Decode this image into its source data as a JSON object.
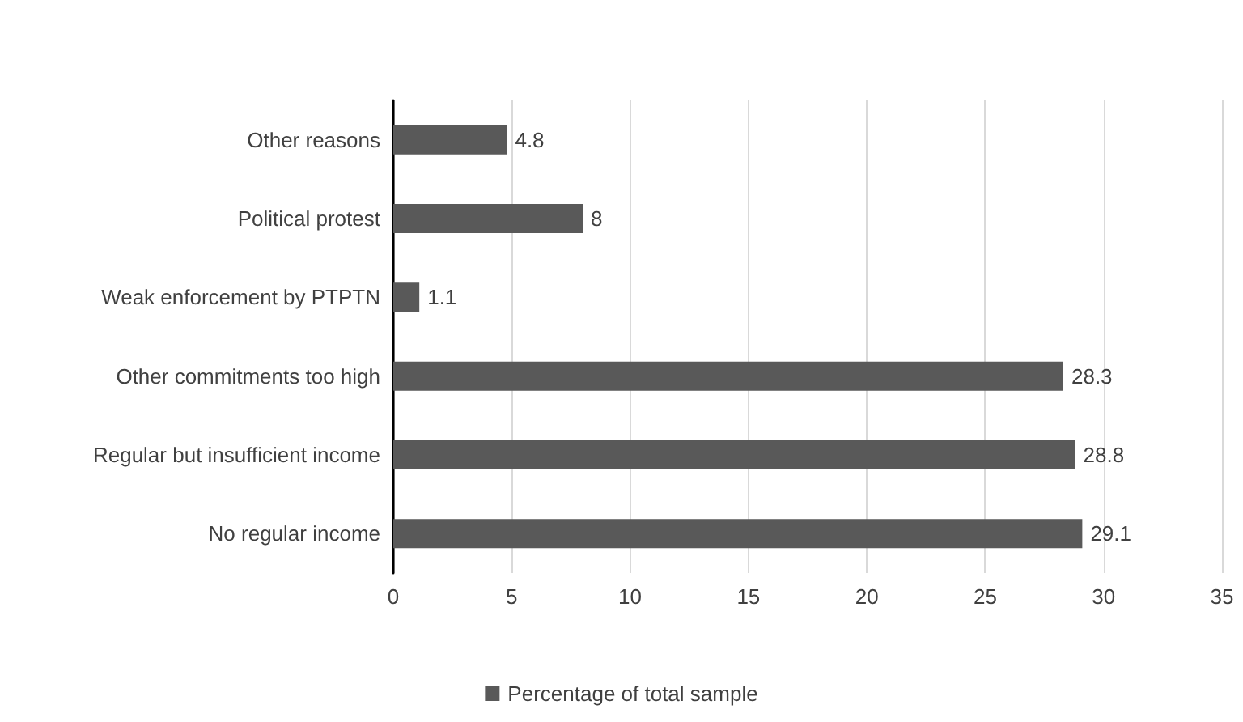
{
  "chart_data": {
    "type": "bar",
    "orientation": "horizontal",
    "categories": [
      "Other reasons",
      "Political protest",
      "Weak enforcement by PTPTN",
      "Other commitments too high",
      "Regular but insufficient income",
      "No regular income"
    ],
    "series": [
      {
        "name": "Percentage of total sample",
        "color": "#595959",
        "values": [
          4.8,
          8,
          1.1,
          28.3,
          28.8,
          29.1
        ]
      }
    ],
    "xlim": [
      0,
      35
    ],
    "xticks": [
      0,
      5,
      10,
      15,
      20,
      25,
      30,
      35
    ],
    "grid": "x",
    "legend": "bottom",
    "data_labels": true
  }
}
